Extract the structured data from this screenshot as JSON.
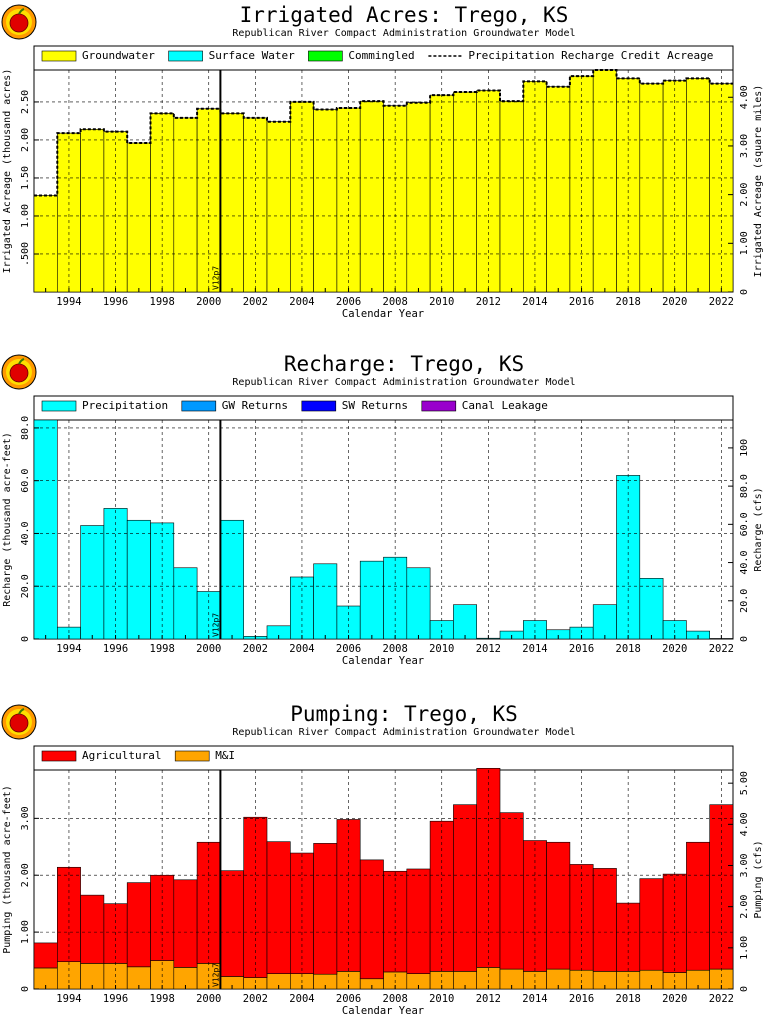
{
  "chart_data": [
    {
      "type": "bar",
      "title": "Irrigated Acres: Trego, KS",
      "subtitle": "Republican River Compact Administration Groundwater Model",
      "xlabel": "Calendar Year",
      "ylabel": "Irrigated Acreage (thousand acres)",
      "ylabel_right": "Irrigated Acreage (square miles)",
      "ylim": [
        0,
        2.92
      ],
      "yticks": [
        ".500",
        "1.00",
        "1.50",
        "2.00",
        "2.50"
      ],
      "ytick_values": [
        0.5,
        1.0,
        1.5,
        2.0,
        2.5
      ],
      "ylim_right": [
        0,
        4.56
      ],
      "yticks_right": [
        "0",
        "1.00",
        "2.00",
        "3.00",
        "4.00"
      ],
      "ytick_right_values": [
        0,
        1.0,
        2.0,
        3.0,
        4.0
      ],
      "xticks": [
        "1994",
        "1996",
        "1998",
        "2000",
        "2002",
        "2004",
        "2006",
        "2008",
        "2010",
        "2012",
        "2014",
        "2016",
        "2018",
        "2020",
        "2022"
      ],
      "x": [
        1993,
        1994,
        1995,
        1996,
        1997,
        1998,
        1999,
        2000,
        2001,
        2002,
        2003,
        2004,
        2005,
        2006,
        2007,
        2008,
        2009,
        2010,
        2011,
        2012,
        2013,
        2014,
        2015,
        2016,
        2017,
        2018,
        2019,
        2020,
        2021,
        2022
      ],
      "legend": [
        {
          "label": "Groundwater",
          "color": "#ffff00",
          "kind": "box"
        },
        {
          "label": "Surface Water",
          "color": "#00ffff",
          "kind": "box"
        },
        {
          "label": "Commingled",
          "color": "#00ff00",
          "kind": "box"
        },
        {
          "label": "Precipitation Recharge Credit Acreage",
          "color": "#000000",
          "kind": "dash"
        }
      ],
      "series": [
        {
          "name": "Groundwater",
          "color": "#ffff00",
          "values": [
            1.27,
            2.09,
            2.14,
            2.11,
            1.96,
            2.35,
            2.29,
            2.41,
            2.35,
            2.29,
            2.24,
            2.5,
            2.4,
            2.42,
            2.51,
            2.45,
            2.49,
            2.59,
            2.63,
            2.65,
            2.51,
            2.77,
            2.7,
            2.84,
            2.92,
            2.81,
            2.74,
            2.78,
            2.81,
            2.74
          ]
        }
      ],
      "dashed_line": {
        "name": "Precipitation Recharge Credit Acreage",
        "values": [
          1.27,
          2.09,
          2.14,
          2.11,
          1.96,
          2.35,
          2.29,
          2.41,
          2.35,
          2.29,
          2.24,
          2.5,
          2.4,
          2.42,
          2.51,
          2.45,
          2.49,
          2.59,
          2.63,
          2.65,
          2.51,
          2.77,
          2.7,
          2.84,
          2.92,
          2.81,
          2.74,
          2.78,
          2.81,
          2.74
        ]
      },
      "version_marker": {
        "label": "V12p7",
        "year": 2000.5
      },
      "grid": true,
      "legend_position": "top"
    },
    {
      "type": "bar",
      "title": "Recharge: Trego, KS",
      "subtitle": "Republican River Compact Administration Groundwater Model",
      "xlabel": "Calendar Year",
      "ylabel": "Recharge (thousand acre-feet)",
      "ylabel_right": "Recharge (cfs)",
      "ylim": [
        0,
        83
      ],
      "yticks": [
        "0",
        "20.0",
        "40.0",
        "60.0",
        "80.0"
      ],
      "ytick_values": [
        0,
        20,
        40,
        60,
        80
      ],
      "ylim_right": [
        0,
        114.6
      ],
      "yticks_right": [
        "0",
        "20.0",
        "40.0",
        "60.0",
        "80.0",
        "100"
      ],
      "ytick_right_values": [
        0,
        20,
        40,
        60,
        80,
        100
      ],
      "xticks": [
        "1994",
        "1996",
        "1998",
        "2000",
        "2002",
        "2004",
        "2006",
        "2008",
        "2010",
        "2012",
        "2014",
        "2016",
        "2018",
        "2020",
        "2022"
      ],
      "x": [
        1993,
        1994,
        1995,
        1996,
        1997,
        1998,
        1999,
        2000,
        2001,
        2002,
        2003,
        2004,
        2005,
        2006,
        2007,
        2008,
        2009,
        2010,
        2011,
        2012,
        2013,
        2014,
        2015,
        2016,
        2017,
        2018,
        2019,
        2020,
        2021,
        2022
      ],
      "legend": [
        {
          "label": "Precipitation",
          "color": "#00ffff",
          "kind": "box"
        },
        {
          "label": "GW Returns",
          "color": "#0099ff",
          "kind": "box"
        },
        {
          "label": "SW Returns",
          "color": "#0000ff",
          "kind": "box"
        },
        {
          "label": "Canal Leakage",
          "color": "#9900cc",
          "kind": "box"
        }
      ],
      "series": [
        {
          "name": "GW Returns",
          "color": "#0099ff",
          "values": [
            0,
            0,
            0,
            0,
            0,
            0,
            0,
            0,
            0,
            0,
            0,
            0,
            0,
            0,
            0,
            0,
            0,
            0,
            0,
            0,
            0,
            0,
            0,
            0,
            0,
            0,
            0,
            0,
            0,
            0
          ]
        },
        {
          "name": "Precipitation",
          "color": "#00ffff",
          "values": [
            83.0,
            4.5,
            43.0,
            49.5,
            45.0,
            44.0,
            27.0,
            18.0,
            45.0,
            1.0,
            5.0,
            23.5,
            28.5,
            12.5,
            29.5,
            31.0,
            27.0,
            7.0,
            13.0,
            0.3,
            3.0,
            7.0,
            3.5,
            4.5,
            13.0,
            62.0,
            23.0,
            7.0,
            3.0,
            0.2
          ]
        }
      ],
      "version_marker": {
        "label": "V12p7",
        "year": 2000.5
      },
      "grid": true,
      "legend_position": "top"
    },
    {
      "type": "bar",
      "title": "Pumping: Trego, KS",
      "subtitle": "Republican River Compact Administration Groundwater Model",
      "xlabel": "Calendar Year",
      "ylabel": "Pumping (thousand acre-feet)",
      "ylabel_right": "Pumping (cfs)",
      "ylim": [
        0,
        3.85
      ],
      "yticks": [
        "0",
        "1.00",
        "2.00",
        "3.00"
      ],
      "ytick_values": [
        0,
        1.0,
        2.0,
        3.0
      ],
      "ylim_right": [
        0,
        5.32
      ],
      "yticks_right": [
        "0",
        "1.00",
        "2.00",
        "3.00",
        "4.00",
        "5.00"
      ],
      "ytick_right_values": [
        0,
        1.0,
        2.0,
        3.0,
        4.0,
        5.0
      ],
      "xticks": [
        "1994",
        "1996",
        "1998",
        "2000",
        "2002",
        "2004",
        "2006",
        "2008",
        "2010",
        "2012",
        "2014",
        "2016",
        "2018",
        "2020",
        "2022"
      ],
      "x": [
        1993,
        1994,
        1995,
        1996,
        1997,
        1998,
        1999,
        2000,
        2001,
        2002,
        2003,
        2004,
        2005,
        2006,
        2007,
        2008,
        2009,
        2010,
        2011,
        2012,
        2013,
        2014,
        2015,
        2016,
        2017,
        2018,
        2019,
        2020,
        2021,
        2022
      ],
      "legend": [
        {
          "label": "Agricultural",
          "color": "#ff0000",
          "kind": "box"
        },
        {
          "label": "M&I",
          "color": "#ffa500",
          "kind": "box"
        }
      ],
      "series": [
        {
          "name": "M&I",
          "color": "#ffa500",
          "values": [
            0.37,
            0.48,
            0.45,
            0.45,
            0.39,
            0.5,
            0.38,
            0.45,
            0.22,
            0.2,
            0.27,
            0.27,
            0.26,
            0.31,
            0.18,
            0.3,
            0.27,
            0.31,
            0.31,
            0.38,
            0.35,
            0.31,
            0.35,
            0.33,
            0.31,
            0.31,
            0.33,
            0.29,
            0.33,
            0.35
          ]
        },
        {
          "name": "Agricultural",
          "color": "#ff0000",
          "values": [
            0.44,
            1.66,
            1.2,
            1.05,
            1.48,
            1.5,
            1.54,
            2.13,
            1.86,
            2.82,
            2.32,
            2.12,
            2.3,
            2.67,
            2.09,
            1.77,
            1.84,
            2.64,
            2.93,
            3.5,
            2.75,
            2.3,
            2.23,
            1.86,
            1.81,
            1.2,
            1.61,
            1.73,
            2.25,
            2.89
          ]
        }
      ],
      "version_marker": {
        "label": "V12p7",
        "year": 2000.5
      },
      "grid": true,
      "legend_position": "top"
    }
  ],
  "panels": [
    {
      "logo": "apple-logo"
    },
    {
      "logo": "apple-logo"
    },
    {
      "logo": "apple-logo"
    }
  ]
}
